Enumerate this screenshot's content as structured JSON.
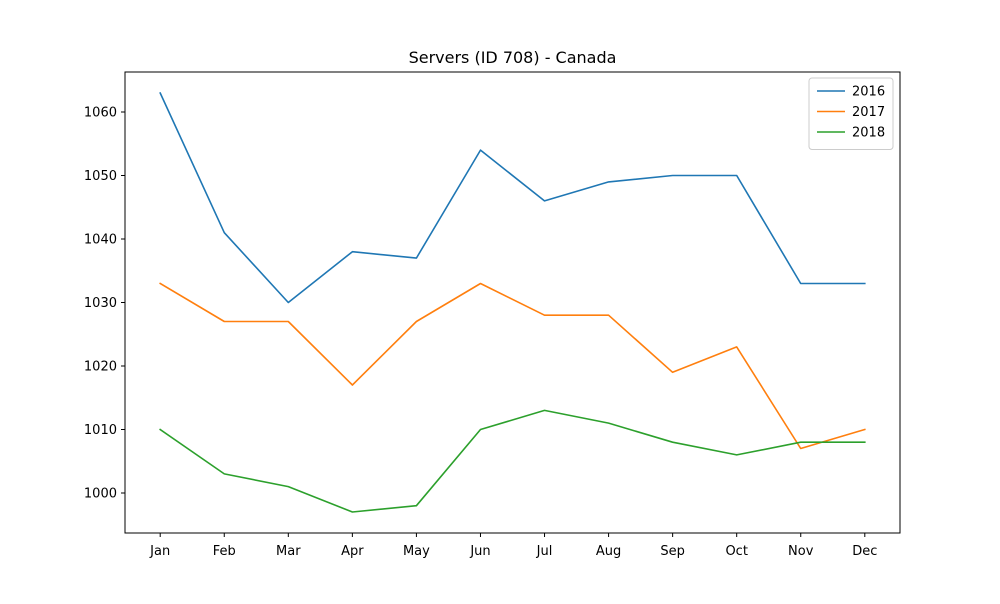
{
  "chart_data": {
    "type": "line",
    "title": "Servers (ID 708) - Canada",
    "xlabel": "",
    "ylabel": "",
    "categories": [
      "Jan",
      "Feb",
      "Mar",
      "Apr",
      "May",
      "Jun",
      "Jul",
      "Aug",
      "Sep",
      "Oct",
      "Nov",
      "Dec"
    ],
    "series": [
      {
        "name": "2016",
        "color": "#1f77b4",
        "values": [
          1063,
          1041,
          1030,
          1038,
          1037,
          1054,
          1046,
          1049,
          1050,
          1050,
          1033,
          1033
        ]
      },
      {
        "name": "2017",
        "color": "#ff7f0e",
        "values": [
          1033,
          1027,
          1027,
          1017,
          1027,
          1033,
          1028,
          1028,
          1019,
          1023,
          1007,
          1010
        ]
      },
      {
        "name": "2018",
        "color": "#2ca02c",
        "values": [
          1010,
          1003,
          1001,
          997,
          998,
          1010,
          1013,
          1011,
          1008,
          1006,
          1008,
          1008
        ]
      }
    ],
    "yticks": [
      1000,
      1010,
      1020,
      1030,
      1040,
      1050,
      1060
    ],
    "ylim": [
      993.7,
      1066.3
    ],
    "grid": false,
    "legend": "top-right"
  }
}
